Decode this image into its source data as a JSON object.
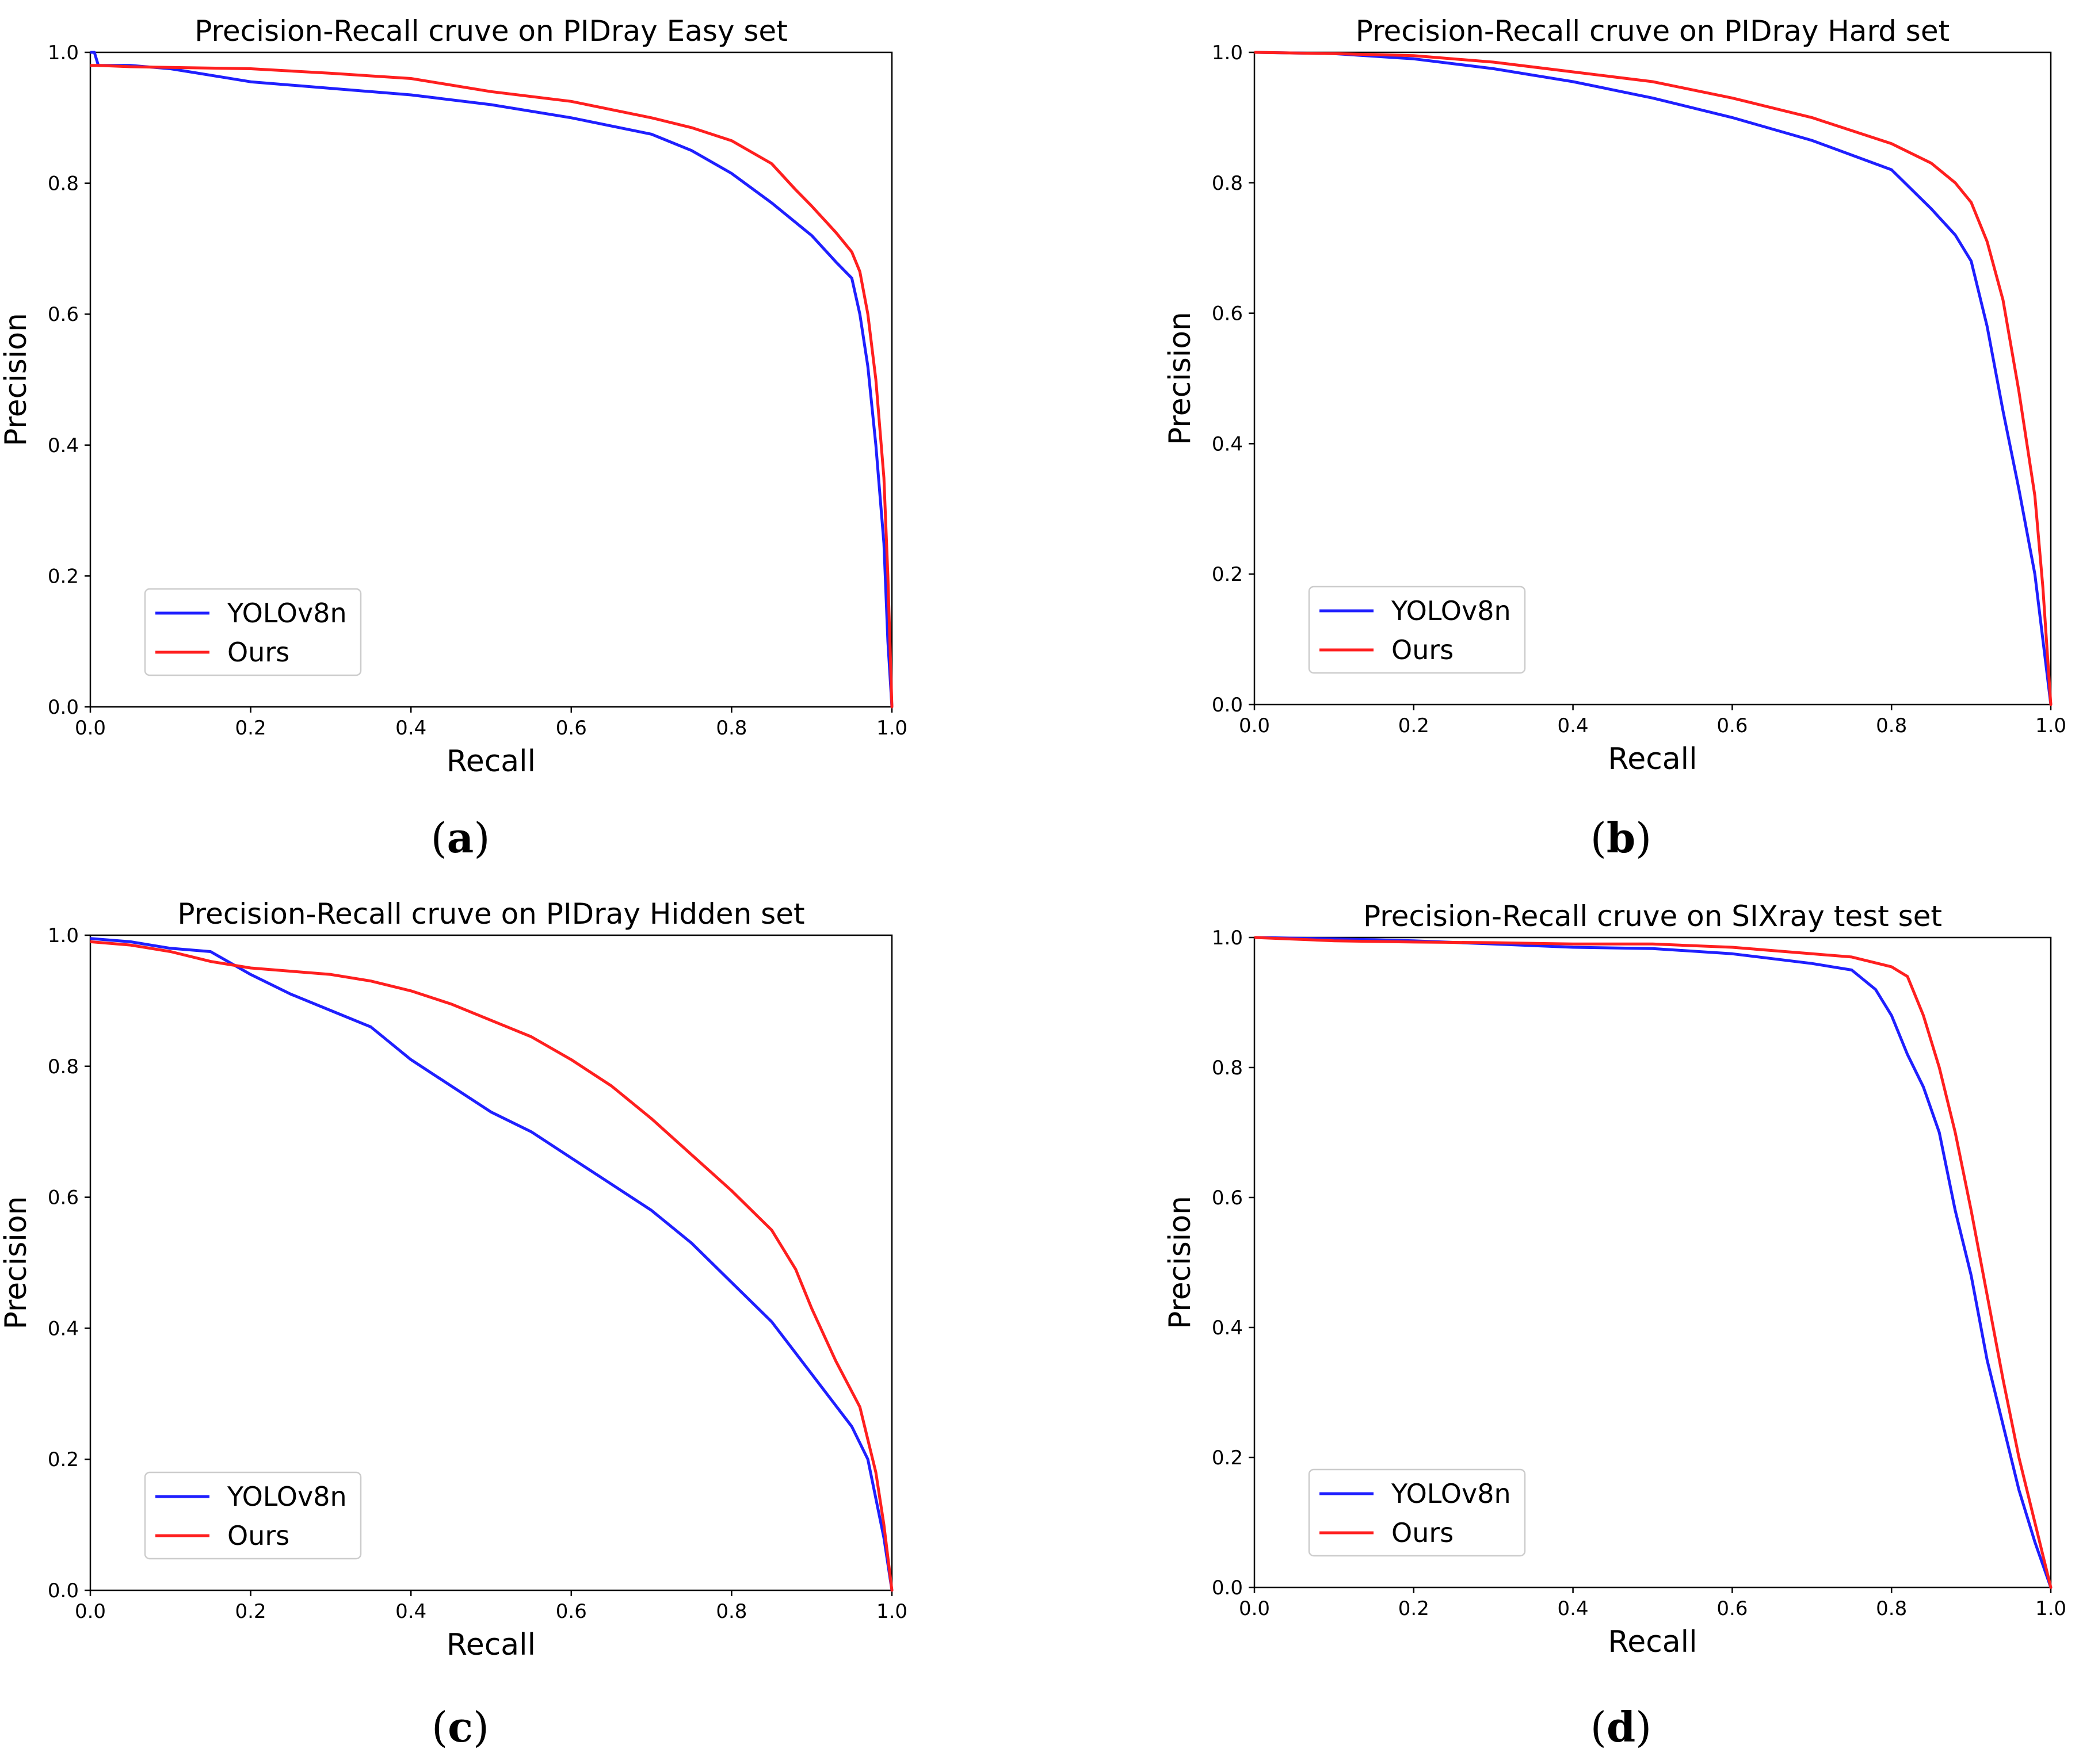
{
  "figure": {
    "background": "#ffffff"
  },
  "chart_data": [
    {
      "type": "line",
      "caption": "a",
      "title": "Precision-Recall cruve on PIDray Easy set",
      "xlabel": "Recall",
      "ylabel": "Precision",
      "xlim": [
        0,
        1
      ],
      "ylim": [
        0,
        1
      ],
      "xticks": [
        "0.0",
        "0.2",
        "0.4",
        "0.6",
        "0.8",
        "1.0"
      ],
      "yticks": [
        "0.0",
        "0.2",
        "0.4",
        "0.6",
        "0.8",
        "1.0"
      ],
      "grid": false,
      "legend_position": "lower-left",
      "series": [
        {
          "name": "YOLOv8n",
          "color": "#1f1fff",
          "x": [
            0.0,
            0.005,
            0.01,
            0.02,
            0.05,
            0.1,
            0.15,
            0.2,
            0.3,
            0.4,
            0.5,
            0.6,
            0.7,
            0.75,
            0.8,
            0.85,
            0.9,
            0.93,
            0.95,
            0.96,
            0.97,
            0.98,
            0.99,
            0.995,
            1.0
          ],
          "y": [
            1.0,
            1.0,
            0.98,
            0.98,
            0.98,
            0.975,
            0.965,
            0.955,
            0.945,
            0.935,
            0.92,
            0.9,
            0.875,
            0.85,
            0.815,
            0.77,
            0.72,
            0.68,
            0.655,
            0.6,
            0.52,
            0.4,
            0.25,
            0.1,
            0.0
          ]
        },
        {
          "name": "Ours",
          "color": "#ff1f1f",
          "x": [
            0.0,
            0.01,
            0.05,
            0.1,
            0.2,
            0.3,
            0.4,
            0.5,
            0.6,
            0.7,
            0.75,
            0.8,
            0.85,
            0.88,
            0.9,
            0.93,
            0.95,
            0.96,
            0.97,
            0.98,
            0.99,
            0.995,
            1.0
          ],
          "y": [
            0.98,
            0.98,
            0.978,
            0.977,
            0.975,
            0.968,
            0.96,
            0.94,
            0.925,
            0.9,
            0.885,
            0.865,
            0.83,
            0.79,
            0.765,
            0.725,
            0.695,
            0.665,
            0.6,
            0.5,
            0.35,
            0.2,
            0.0
          ]
        }
      ]
    },
    {
      "type": "line",
      "caption": "b",
      "title": "Precision-Recall cruve on PIDray Hard set",
      "xlabel": "Recall",
      "ylabel": "Precision",
      "xlim": [
        0,
        1
      ],
      "ylim": [
        0,
        1
      ],
      "xticks": [
        "0.0",
        "0.2",
        "0.4",
        "0.6",
        "0.8",
        "1.0"
      ],
      "yticks": [
        "0.0",
        "0.2",
        "0.4",
        "0.6",
        "0.8",
        "1.0"
      ],
      "grid": false,
      "legend_position": "lower-left",
      "series": [
        {
          "name": "YOLOv8n",
          "color": "#1f1fff",
          "x": [
            0.0,
            0.1,
            0.2,
            0.3,
            0.4,
            0.5,
            0.6,
            0.7,
            0.8,
            0.85,
            0.88,
            0.9,
            0.92,
            0.94,
            0.96,
            0.98,
            1.0
          ],
          "y": [
            1.0,
            0.998,
            0.99,
            0.975,
            0.955,
            0.93,
            0.9,
            0.865,
            0.82,
            0.76,
            0.72,
            0.68,
            0.58,
            0.45,
            0.33,
            0.2,
            0.0
          ]
        },
        {
          "name": "Ours",
          "color": "#ff1f1f",
          "x": [
            0.0,
            0.1,
            0.2,
            0.3,
            0.4,
            0.5,
            0.6,
            0.7,
            0.8,
            0.85,
            0.88,
            0.9,
            0.92,
            0.94,
            0.96,
            0.98,
            0.99,
            1.0
          ],
          "y": [
            1.0,
            0.998,
            0.995,
            0.985,
            0.97,
            0.955,
            0.93,
            0.9,
            0.86,
            0.83,
            0.8,
            0.77,
            0.71,
            0.62,
            0.48,
            0.32,
            0.18,
            0.0
          ]
        }
      ]
    },
    {
      "type": "line",
      "caption": "c",
      "title": "Precision-Recall cruve on PIDray Hidden set",
      "xlabel": "Recall",
      "ylabel": "Precision",
      "xlim": [
        0,
        1
      ],
      "ylim": [
        0,
        1
      ],
      "xticks": [
        "0.0",
        "0.2",
        "0.4",
        "0.6",
        "0.8",
        "1.0"
      ],
      "yticks": [
        "0.0",
        "0.2",
        "0.4",
        "0.6",
        "0.8",
        "1.0"
      ],
      "grid": false,
      "legend_position": "lower-left",
      "series": [
        {
          "name": "YOLOv8n",
          "color": "#1f1fff",
          "x": [
            0.0,
            0.05,
            0.1,
            0.15,
            0.2,
            0.25,
            0.3,
            0.35,
            0.4,
            0.45,
            0.5,
            0.55,
            0.6,
            0.65,
            0.7,
            0.75,
            0.8,
            0.85,
            0.9,
            0.95,
            0.97,
            0.99,
            1.0
          ],
          "y": [
            0.995,
            0.99,
            0.98,
            0.975,
            0.94,
            0.91,
            0.885,
            0.86,
            0.81,
            0.77,
            0.73,
            0.7,
            0.66,
            0.62,
            0.58,
            0.53,
            0.47,
            0.41,
            0.33,
            0.25,
            0.2,
            0.08,
            0.0
          ]
        },
        {
          "name": "Ours",
          "color": "#ff1f1f",
          "x": [
            0.0,
            0.05,
            0.1,
            0.15,
            0.2,
            0.25,
            0.3,
            0.35,
            0.4,
            0.45,
            0.5,
            0.55,
            0.6,
            0.65,
            0.7,
            0.75,
            0.8,
            0.85,
            0.88,
            0.9,
            0.93,
            0.96,
            0.98,
            0.99,
            1.0
          ],
          "y": [
            0.99,
            0.985,
            0.975,
            0.96,
            0.95,
            0.945,
            0.94,
            0.93,
            0.915,
            0.895,
            0.87,
            0.845,
            0.81,
            0.77,
            0.72,
            0.665,
            0.61,
            0.55,
            0.49,
            0.43,
            0.35,
            0.28,
            0.18,
            0.1,
            0.0
          ]
        }
      ]
    },
    {
      "type": "line",
      "caption": "d",
      "title": "Precision-Recall cruve on SIXray test set",
      "xlabel": "Recall",
      "ylabel": "Precision",
      "xlim": [
        0,
        1
      ],
      "ylim": [
        0,
        1
      ],
      "xticks": [
        "0.0",
        "0.2",
        "0.4",
        "0.6",
        "0.8",
        "1.0"
      ],
      "yticks": [
        "0.0",
        "0.2",
        "0.4",
        "0.6",
        "0.8",
        "1.0"
      ],
      "grid": false,
      "legend_position": "lower-left",
      "series": [
        {
          "name": "YOLOv8n",
          "color": "#1f1fff",
          "x": [
            0.0,
            0.1,
            0.2,
            0.3,
            0.4,
            0.5,
            0.6,
            0.7,
            0.75,
            0.78,
            0.8,
            0.82,
            0.84,
            0.86,
            0.88,
            0.9,
            0.92,
            0.94,
            0.96,
            0.98,
            1.0
          ],
          "y": [
            1.0,
            0.998,
            0.995,
            0.99,
            0.985,
            0.983,
            0.975,
            0.96,
            0.95,
            0.92,
            0.88,
            0.82,
            0.77,
            0.7,
            0.58,
            0.48,
            0.35,
            0.25,
            0.15,
            0.07,
            0.0
          ]
        },
        {
          "name": "Ours",
          "color": "#ff1f1f",
          "x": [
            0.0,
            0.1,
            0.2,
            0.3,
            0.4,
            0.5,
            0.6,
            0.7,
            0.75,
            0.8,
            0.82,
            0.84,
            0.86,
            0.88,
            0.9,
            0.92,
            0.94,
            0.96,
            0.98,
            1.0
          ],
          "y": [
            1.0,
            0.995,
            0.993,
            0.992,
            0.99,
            0.99,
            0.985,
            0.975,
            0.97,
            0.955,
            0.94,
            0.88,
            0.8,
            0.7,
            0.58,
            0.45,
            0.32,
            0.2,
            0.1,
            0.0
          ]
        }
      ]
    }
  ]
}
